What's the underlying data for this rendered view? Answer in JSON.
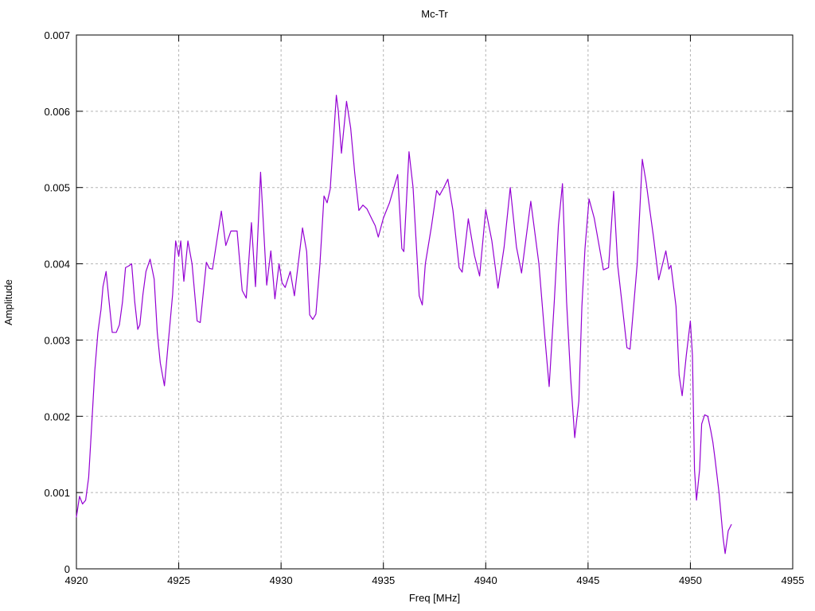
{
  "page": {
    "background": "#ffffff"
  },
  "chart_data": {
    "type": "line",
    "title": "Mc-Tr",
    "xlabel": "Freq [MHz]",
    "ylabel": "Amplitude",
    "xlim": [
      4920,
      4955
    ],
    "ylim": [
      0,
      0.007
    ],
    "xticks": [
      4920,
      4925,
      4930,
      4935,
      4940,
      4945,
      4950,
      4955
    ],
    "xtick_labels": [
      "4920",
      "4925",
      "4930",
      "4935",
      "4940",
      "4945",
      "4950",
      "4955"
    ],
    "yticks": [
      0,
      0.001,
      0.002,
      0.003,
      0.004,
      0.005,
      0.006,
      0.007
    ],
    "ytick_labels": [
      "0",
      "0.001",
      "0.002",
      "0.003",
      "0.004",
      "0.005",
      "0.006",
      "0.007"
    ],
    "grid": true,
    "legend_position": "none",
    "series": [
      {
        "name": "Mc-Tr",
        "color": "#9400d3",
        "points": [
          [
            4920.0,
            0.00068
          ],
          [
            4920.15,
            0.00095
          ],
          [
            4920.3,
            0.00085
          ],
          [
            4920.45,
            0.0009
          ],
          [
            4920.6,
            0.0012
          ],
          [
            4920.75,
            0.0019
          ],
          [
            4920.9,
            0.0026
          ],
          [
            4921.05,
            0.0031
          ],
          [
            4921.2,
            0.0034
          ],
          [
            4921.3,
            0.0037
          ],
          [
            4921.45,
            0.0039
          ],
          [
            4921.6,
            0.0035
          ],
          [
            4921.75,
            0.0031
          ],
          [
            4921.95,
            0.0031
          ],
          [
            4922.1,
            0.0032
          ],
          [
            4922.25,
            0.0035
          ],
          [
            4922.4,
            0.00395
          ],
          [
            4922.55,
            0.00397
          ],
          [
            4922.7,
            0.004
          ],
          [
            4922.85,
            0.0035
          ],
          [
            4923.0,
            0.00314
          ],
          [
            4923.1,
            0.0032
          ],
          [
            4923.25,
            0.0036
          ],
          [
            4923.4,
            0.0039
          ],
          [
            4923.6,
            0.00406
          ],
          [
            4923.8,
            0.0038
          ],
          [
            4923.95,
            0.0031
          ],
          [
            4924.1,
            0.0027
          ],
          [
            4924.3,
            0.0024
          ],
          [
            4924.5,
            0.003
          ],
          [
            4924.7,
            0.0036
          ],
          [
            4924.85,
            0.0043
          ],
          [
            4925.0,
            0.0041
          ],
          [
            4925.1,
            0.0043
          ],
          [
            4925.25,
            0.00377
          ],
          [
            4925.45,
            0.0043
          ],
          [
            4925.65,
            0.004
          ],
          [
            4925.9,
            0.00325
          ],
          [
            4926.05,
            0.00323
          ],
          [
            4926.35,
            0.00402
          ],
          [
            4926.5,
            0.00394
          ],
          [
            4926.65,
            0.00393
          ],
          [
            4927.08,
            0.00469
          ],
          [
            4927.3,
            0.00424
          ],
          [
            4927.55,
            0.00443
          ],
          [
            4927.85,
            0.00443
          ],
          [
            4928.1,
            0.00365
          ],
          [
            4928.3,
            0.00355
          ],
          [
            4928.55,
            0.00454
          ],
          [
            4928.75,
            0.0037
          ],
          [
            4929.0,
            0.0052
          ],
          [
            4929.3,
            0.00372
          ],
          [
            4929.5,
            0.00417
          ],
          [
            4929.7,
            0.00354
          ],
          [
            4929.9,
            0.004
          ],
          [
            4930.05,
            0.00375
          ],
          [
            4930.2,
            0.00369
          ],
          [
            4930.45,
            0.0039
          ],
          [
            4930.65,
            0.00358
          ],
          [
            4931.05,
            0.00447
          ],
          [
            4931.25,
            0.00416
          ],
          [
            4931.4,
            0.00333
          ],
          [
            4931.55,
            0.00327
          ],
          [
            4931.7,
            0.00334
          ],
          [
            4931.9,
            0.004
          ],
          [
            4932.1,
            0.00489
          ],
          [
            4932.25,
            0.0048
          ],
          [
            4932.4,
            0.00498
          ],
          [
            4932.7,
            0.00621
          ],
          [
            4932.8,
            0.006
          ],
          [
            4932.95,
            0.00545
          ],
          [
            4933.2,
            0.00613
          ],
          [
            4933.4,
            0.00578
          ],
          [
            4933.6,
            0.00519
          ],
          [
            4933.8,
            0.0047
          ],
          [
            4934.0,
            0.00477
          ],
          [
            4934.2,
            0.00472
          ],
          [
            4934.45,
            0.00458
          ],
          [
            4934.6,
            0.0045
          ],
          [
            4934.75,
            0.00435
          ],
          [
            4935.0,
            0.0046
          ],
          [
            4935.3,
            0.0048
          ],
          [
            4935.7,
            0.00517
          ],
          [
            4935.9,
            0.0042
          ],
          [
            4936.0,
            0.00416
          ],
          [
            4936.25,
            0.00547
          ],
          [
            4936.45,
            0.005
          ],
          [
            4936.75,
            0.00358
          ],
          [
            4936.9,
            0.00346
          ],
          [
            4937.05,
            0.004
          ],
          [
            4937.35,
            0.00449
          ],
          [
            4937.6,
            0.00496
          ],
          [
            4937.75,
            0.0049
          ],
          [
            4937.95,
            0.005
          ],
          [
            4938.15,
            0.00511
          ],
          [
            4938.4,
            0.0047
          ],
          [
            4938.7,
            0.00395
          ],
          [
            4938.85,
            0.00389
          ],
          [
            4939.15,
            0.00459
          ],
          [
            4939.45,
            0.00411
          ],
          [
            4939.7,
            0.00384
          ],
          [
            4940.0,
            0.00471
          ],
          [
            4940.3,
            0.0043
          ],
          [
            4940.6,
            0.00368
          ],
          [
            4940.9,
            0.00422
          ],
          [
            4941.2,
            0.005
          ],
          [
            4941.5,
            0.00422
          ],
          [
            4941.75,
            0.00388
          ],
          [
            4942.2,
            0.00482
          ],
          [
            4942.6,
            0.004
          ],
          [
            4942.9,
            0.003
          ],
          [
            4943.1,
            0.00239
          ],
          [
            4943.35,
            0.0035
          ],
          [
            4943.55,
            0.0045
          ],
          [
            4943.75,
            0.00505
          ],
          [
            4943.95,
            0.0035
          ],
          [
            4944.15,
            0.0025
          ],
          [
            4944.35,
            0.00172
          ],
          [
            4944.55,
            0.0022
          ],
          [
            4944.7,
            0.00344
          ],
          [
            4944.85,
            0.0042
          ],
          [
            4945.05,
            0.00485
          ],
          [
            4945.3,
            0.0046
          ],
          [
            4945.5,
            0.0043
          ],
          [
            4945.75,
            0.00392
          ],
          [
            4946.0,
            0.00395
          ],
          [
            4946.25,
            0.00495
          ],
          [
            4946.45,
            0.00398
          ],
          [
            4946.65,
            0.0035
          ],
          [
            4946.9,
            0.0029
          ],
          [
            4947.05,
            0.00288
          ],
          [
            4947.4,
            0.004
          ],
          [
            4947.65,
            0.00537
          ],
          [
            4947.85,
            0.00505
          ],
          [
            4948.0,
            0.00474
          ],
          [
            4948.2,
            0.00435
          ],
          [
            4948.45,
            0.00379
          ],
          [
            4948.8,
            0.00417
          ],
          [
            4948.95,
            0.00393
          ],
          [
            4949.05,
            0.00398
          ],
          [
            4949.3,
            0.00344
          ],
          [
            4949.45,
            0.00254
          ],
          [
            4949.6,
            0.00227
          ],
          [
            4949.8,
            0.0028
          ],
          [
            4950.0,
            0.00325
          ],
          [
            4950.1,
            0.0028
          ],
          [
            4950.2,
            0.0013
          ],
          [
            4950.3,
            0.0009
          ],
          [
            4950.45,
            0.0013
          ],
          [
            4950.55,
            0.0019
          ],
          [
            4950.7,
            0.00202
          ],
          [
            4950.85,
            0.002
          ],
          [
            4951.0,
            0.00181
          ],
          [
            4951.1,
            0.00166
          ],
          [
            4951.2,
            0.00145
          ],
          [
            4951.4,
            0.001
          ],
          [
            4951.6,
            0.0004
          ],
          [
            4951.7,
            0.0002
          ],
          [
            4951.85,
            0.0005
          ],
          [
            4952.0,
            0.00058
          ]
        ]
      }
    ]
  },
  "style": {
    "line_color": "#9400d3",
    "grid_color": "#b4b4b4",
    "border_color": "#000000",
    "text_color": "#000000"
  }
}
